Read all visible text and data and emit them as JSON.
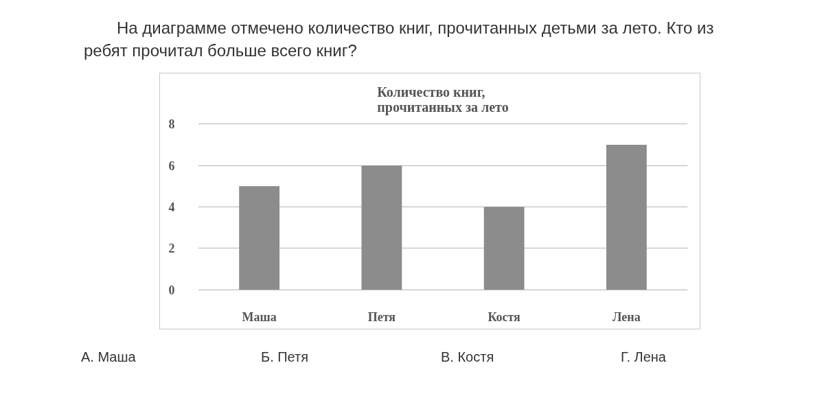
{
  "chart_data": {
    "type": "bar",
    "title": "Количество книг,\nпрочитанных за лето",
    "categories": [
      "Маша",
      "Петя",
      "Костя",
      "Лена"
    ],
    "values": [
      5,
      6,
      4,
      7
    ],
    "color": "#8c8c8c",
    "ylim": [
      0,
      8
    ],
    "yticks": [
      0,
      2,
      4,
      6,
      8
    ],
    "grid": "y",
    "annotations": [
      "На диаграмме отмечено количество книг, прочитанных детьми за лето. Кто из ребят прочитал больше всего книг?",
      "А. Маша",
      "Б. Петя",
      "В. Костя",
      "Г. Лена"
    ]
  }
}
